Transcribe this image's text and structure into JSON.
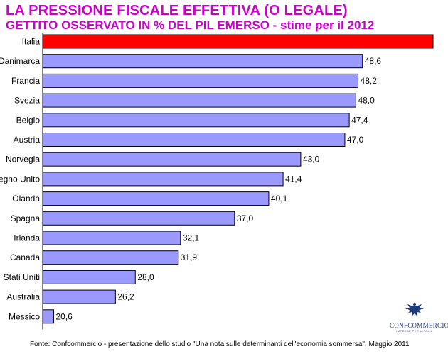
{
  "header": {
    "title": "LA PRESSIONE FISCALE EFFETTIVA (O LEGALE)",
    "subtitle": "GETTITO OSSERVATO IN % DEL PIL EMERSO - stime per il 2012"
  },
  "chart_data": {
    "type": "bar",
    "orientation": "horizontal",
    "categories": [
      "Italia",
      "Danimarca",
      "Francia",
      "Svezia",
      "Belgio",
      "Austria",
      "Norvegia",
      "Regno Unito",
      "Olanda",
      "Spagna",
      "Irlanda",
      "Canada",
      "Stati Uniti",
      "Australia",
      "Messico"
    ],
    "values": [
      55.0,
      48.6,
      48.2,
      48.0,
      47.4,
      47.0,
      43.0,
      41.4,
      40.1,
      37.0,
      32.1,
      31.9,
      28.0,
      26.2,
      20.6
    ],
    "value_labels": [
      "",
      "48,6",
      "48,2",
      "48,0",
      "47,4",
      "47,0",
      "43,0",
      "41,4",
      "40,1",
      "37,0",
      "32,1",
      "31,9",
      "28,0",
      "26,2",
      "20,6"
    ],
    "highlight_index": 0,
    "colors": {
      "default": "#9999ff",
      "highlight": "#ff0000",
      "border": "#000000"
    },
    "xlim": [
      19.6,
      55.0
    ],
    "grid": false,
    "legend": "none"
  },
  "logo": {
    "name": "CONFCOMMERCIO",
    "tagline": "IMPRESE PER L'ITALIA",
    "icon": "eagle-emblem-icon"
  },
  "footer": {
    "source": "Fonte: Confcommercio - presentazione dello studio \"Una nota sulle determinanti dell'economia sommersa\", Maggio 2011"
  }
}
